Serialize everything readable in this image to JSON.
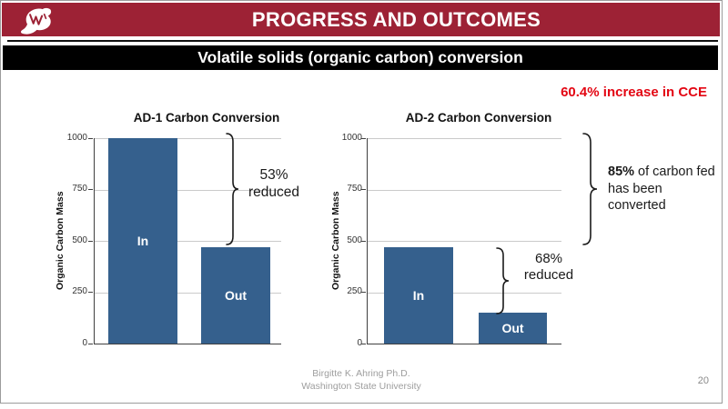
{
  "colors": {
    "crimson": "#9D2235",
    "bar_blue": "#35608D",
    "alert_red": "#E30613"
  },
  "header": {
    "title": "PROGRESS AND OUTCOMES",
    "logo": "wsu-cougar-icon"
  },
  "subheader": {
    "title": "Volatile solids (organic carbon) conversion"
  },
  "callout": {
    "text": "60.4% increase in CCE"
  },
  "footer": {
    "author": "Birgitte K. Ahring Ph.D.",
    "affiliation": "Washington State University",
    "page_number": "20"
  },
  "chart_data": [
    {
      "type": "bar",
      "title": "AD-1 Carbon Conversion",
      "ylabel": "Organic Carbon Mass",
      "categories": [
        "In",
        "Out"
      ],
      "values": [
        1000,
        470
      ],
      "ylim": [
        0,
        1000
      ],
      "yticks": [
        "0",
        "250",
        "500",
        "750",
        "1000"
      ],
      "grid": true,
      "legend": "none",
      "annotation": {
        "value": "53%",
        "label": "reduced"
      }
    },
    {
      "type": "bar",
      "title": "AD-2 Carbon Conversion",
      "ylabel": "Organic Carbon Mass",
      "categories": [
        "In",
        "Out"
      ],
      "values": [
        470,
        150
      ],
      "ylim": [
        0,
        1000
      ],
      "yticks": [
        "0",
        "250",
        "500",
        "750",
        "1000"
      ],
      "grid": true,
      "legend": "none",
      "annotation": {
        "value": "68%",
        "label": "reduced"
      },
      "side_annotation": {
        "bold": "85%",
        "rest": " of carbon fed has been converted"
      }
    }
  ]
}
